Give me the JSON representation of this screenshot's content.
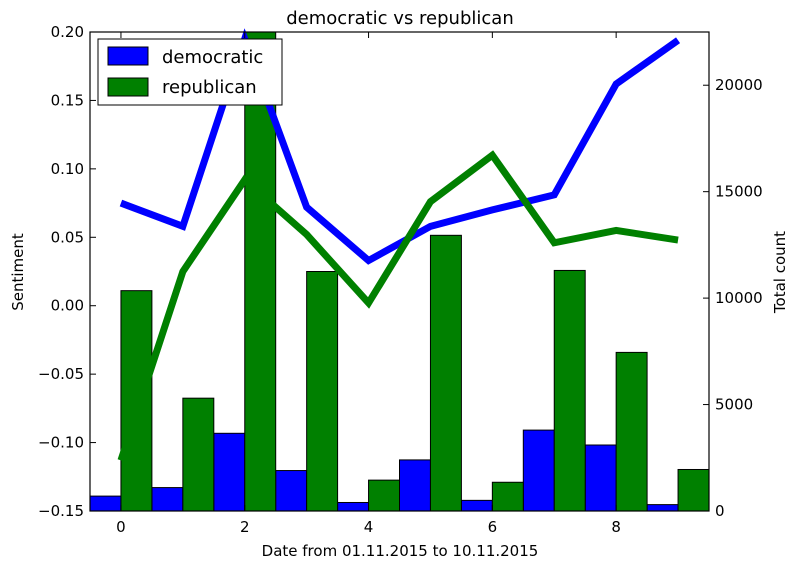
{
  "chart_data": {
    "type": "bar+line",
    "title": "democratic vs republican",
    "xlabel": "Date from 01.11.2015 to 10.11.2015",
    "ylabel_left": "Sentiment",
    "ylabel_right": "Total count",
    "x": [
      0,
      1,
      2,
      3,
      4,
      5,
      6,
      7,
      8,
      9
    ],
    "x_ticks": [
      "0",
      "2",
      "4",
      "6",
      "8"
    ],
    "x_tick_values": [
      0,
      2,
      4,
      6,
      8
    ],
    "xlim": [
      -0.5,
      9.5
    ],
    "ylim_left": [
      -0.15,
      0.2
    ],
    "y_ticks_left": [
      "0.20",
      "0.15",
      "0.10",
      "0.05",
      "0.00",
      "−0.05",
      "−0.10",
      "−0.15"
    ],
    "y_tick_values_left": [
      0.2,
      0.15,
      0.1,
      0.05,
      0.0,
      -0.05,
      -0.1,
      -0.15
    ],
    "ylim_right": [
      0,
      22500
    ],
    "y_ticks_right": [
      "20000",
      "15000",
      "10000",
      "5000",
      "0"
    ],
    "y_tick_values_right": [
      20000,
      15000,
      10000,
      5000,
      0
    ],
    "legend_position": "top-left",
    "colors": {
      "democratic": "#0000ff",
      "republican": "#008000"
    },
    "series": [
      {
        "name": "democratic",
        "sentiment": [
          0.075,
          0.058,
          0.195,
          0.072,
          0.033,
          0.058,
          0.07,
          0.081,
          0.162,
          0.194
        ],
        "count": [
          700,
          1100,
          3650,
          1900,
          400,
          2400,
          500,
          3800,
          3100,
          300
        ]
      },
      {
        "name": "republican",
        "sentiment": [
          -0.113,
          0.025,
          0.092,
          0.052,
          0.002,
          0.076,
          0.11,
          0.046,
          0.055,
          0.048
        ],
        "count": [
          10350,
          5300,
          22600,
          11250,
          1450,
          12950,
          1350,
          11300,
          7450,
          1950
        ]
      }
    ]
  }
}
